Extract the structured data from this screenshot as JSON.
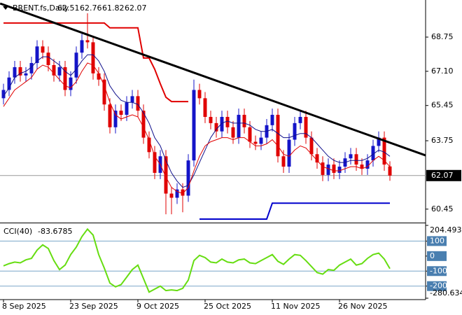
{
  "chart_data": {
    "type": "candlestick",
    "symbol": "BRENT.fs,Daily",
    "up_color": "#1414c8",
    "down_color": "#e00000",
    "xlim": [
      -0.625,
      75.375
    ],
    "ylim": [
      59.8,
      70.54
    ],
    "yticks": [
      68.75,
      {
        "value": 67.1,
        "label": "67.10"
      },
      65.45,
      63.75,
      60.45
    ],
    "xticks": [
      {
        "value": 0,
        "label": "8 Sep 2025"
      },
      {
        "value": 12,
        "label": "23 Sep 2025"
      },
      {
        "value": 24,
        "label": "9 Oct 2025"
      },
      {
        "value": 36,
        "label": "25 Oct 2025"
      },
      {
        "value": 48,
        "label": "11 Nov 2025"
      },
      {
        "value": 60,
        "label": "26 Nov 2025"
      }
    ],
    "candles": {
      "open": [
        65.8,
        66.2,
        66.8,
        67.3,
        66.9,
        67.0,
        67.5,
        68.3,
        68.0,
        67.4,
        66.9,
        67.3,
        66.2,
        66.8,
        68.0,
        68.6,
        68.5,
        67.0,
        66.7,
        65.5,
        64.4,
        65.2,
        65.0,
        65.6,
        65.9,
        65.2,
        63.9,
        63.2,
        62.2,
        63.0,
        61.2,
        61.0,
        61.4,
        61.1,
        62.8,
        66.2,
        65.8,
        64.9,
        64.6,
        64.2,
        64.9,
        64.4,
        63.9,
        65.0,
        64.4,
        63.7,
        63.6,
        63.9,
        64.5,
        65.0,
        63.0,
        62.5,
        63.8,
        64.6,
        64.9,
        63.9,
        63.1,
        62.7,
        62.1,
        62.6,
        62.2,
        62.5,
        62.9,
        63.1,
        62.6,
        62.4,
        62.8,
        63.5,
        63.9,
        62.51
      ],
      "high": [
        66.5,
        67.1,
        67.6,
        67.6,
        67.3,
        67.8,
        68.6,
        68.6,
        68.3,
        67.7,
        67.6,
        67.6,
        67.1,
        68.3,
        68.9,
        69.9,
        68.8,
        67.3,
        67.0,
        65.8,
        65.5,
        65.5,
        65.9,
        66.2,
        66.2,
        65.5,
        64.2,
        63.5,
        63.3,
        63.3,
        61.5,
        61.7,
        61.7,
        63.1,
        66.7,
        66.5,
        66.1,
        65.2,
        64.9,
        65.2,
        65.2,
        64.7,
        65.3,
        65.3,
        64.7,
        64.0,
        64.2,
        64.8,
        65.3,
        65.3,
        63.3,
        64.1,
        64.9,
        65.2,
        65.2,
        64.2,
        63.4,
        63.0,
        62.9,
        62.9,
        62.8,
        63.2,
        63.4,
        63.4,
        62.9,
        63.1,
        63.8,
        64.2,
        64.2,
        62.76
      ],
      "low": [
        65.5,
        65.9,
        66.5,
        66.6,
        66.6,
        66.7,
        67.2,
        67.7,
        67.1,
        66.6,
        66.6,
        65.9,
        65.9,
        66.5,
        67.7,
        68.2,
        66.7,
        66.4,
        65.2,
        64.1,
        64.1,
        64.7,
        64.7,
        65.3,
        64.9,
        63.6,
        62.9,
        61.9,
        61.9,
        60.2,
        60.2,
        60.7,
        60.3,
        60.8,
        62.5,
        65.5,
        64.6,
        64.3,
        63.9,
        63.9,
        64.1,
        63.6,
        63.6,
        64.1,
        63.4,
        63.3,
        63.3,
        63.6,
        64.2,
        62.7,
        62.2,
        62.2,
        63.5,
        64.3,
        63.6,
        62.8,
        62.4,
        61.8,
        61.8,
        61.9,
        61.9,
        62.2,
        62.6,
        62.3,
        62.1,
        62.1,
        62.5,
        63.2,
        62.3,
        61.82
      ],
      "close": [
        66.2,
        66.8,
        67.3,
        66.9,
        67.0,
        67.5,
        68.3,
        68.0,
        67.4,
        66.9,
        67.3,
        66.2,
        66.8,
        68.0,
        68.6,
        68.5,
        67.0,
        66.7,
        65.5,
        64.4,
        65.2,
        65.0,
        65.6,
        65.9,
        65.2,
        63.9,
        63.2,
        62.2,
        63.0,
        61.2,
        61.0,
        61.4,
        61.1,
        62.8,
        66.2,
        65.8,
        64.9,
        64.6,
        64.2,
        64.9,
        64.4,
        63.9,
        65.0,
        64.4,
        63.7,
        63.6,
        63.9,
        64.5,
        65.0,
        63.0,
        62.5,
        63.8,
        64.6,
        64.9,
        63.9,
        63.1,
        62.7,
        62.1,
        62.6,
        62.2,
        62.5,
        62.9,
        63.1,
        62.6,
        62.4,
        62.8,
        63.5,
        63.9,
        62.6,
        62.07
      ]
    },
    "overlays": [
      {
        "color": "#10108c",
        "width": 1,
        "values": [
          65.9,
          66.3,
          66.8,
          67.0,
          67.1,
          67.3,
          67.6,
          67.8,
          67.8,
          67.6,
          67.4,
          67.1,
          66.9,
          67.2,
          67.6,
          67.9,
          67.9,
          67.6,
          67.1,
          66.4,
          66.0,
          65.7,
          65.6,
          65.6,
          65.5,
          65.1,
          64.6,
          63.9,
          63.5,
          62.8,
          62.2,
          61.8,
          61.5,
          61.6,
          62.1,
          62.7,
          63.3,
          63.9,
          64.3,
          64.6,
          64.7,
          64.6,
          64.6,
          64.6,
          64.5,
          64.3,
          64.2,
          64.2,
          64.3,
          64.1,
          63.9,
          63.9,
          64.0,
          64.1,
          64.1,
          63.9,
          63.6,
          63.3,
          63.0,
          62.8,
          62.7,
          62.7,
          62.8,
          62.8,
          62.8,
          62.9,
          63.1,
          63.3,
          63.2,
          63.0
        ]
      },
      {
        "color": "#e00000",
        "width": 1,
        "values": [
          65.4,
          65.8,
          66.2,
          66.4,
          66.6,
          66.8,
          67.2,
          67.4,
          67.3,
          67.0,
          66.7,
          66.4,
          66.3,
          66.6,
          67.1,
          67.5,
          67.4,
          67.0,
          66.4,
          65.6,
          65.0,
          64.8,
          64.9,
          65.0,
          64.9,
          64.4,
          63.8,
          63.0,
          62.6,
          62.0,
          61.5,
          61.3,
          61.2,
          61.5,
          62.3,
          63.0,
          63.5,
          63.7,
          63.8,
          63.9,
          63.9,
          63.8,
          63.9,
          63.9,
          63.7,
          63.5,
          63.5,
          63.6,
          63.8,
          63.5,
          63.1,
          63.0,
          63.3,
          63.5,
          63.4,
          63.1,
          62.8,
          62.5,
          62.4,
          62.3,
          62.3,
          62.4,
          62.5,
          62.5,
          62.4,
          62.5,
          62.8,
          63.0,
          62.8,
          62.5
        ]
      },
      {
        "color": "#e00000",
        "width": 2,
        "values": [
          69.43,
          69.43,
          69.43,
          69.43,
          69.43,
          69.43,
          69.43,
          69.43,
          69.43,
          69.43,
          69.43,
          69.43,
          69.43,
          69.43,
          69.43,
          69.43,
          69.43,
          69.43,
          69.43,
          69.2,
          69.2,
          69.2,
          69.2,
          69.2,
          69.2,
          67.74,
          67.74,
          67.2,
          66.5,
          65.85,
          65.64,
          65.64,
          65.64,
          65.64,
          null,
          null,
          null,
          null,
          null,
          null,
          null,
          null,
          null,
          null,
          null,
          null,
          null,
          null,
          null,
          null,
          null,
          null,
          null,
          null,
          null,
          null,
          null,
          null,
          null,
          null,
          null,
          null,
          null,
          null,
          null,
          null,
          null,
          null,
          null,
          null
        ]
      },
      {
        "color": "#0000cc",
        "width": 2,
        "values": [
          null,
          null,
          null,
          null,
          null,
          null,
          null,
          null,
          null,
          null,
          null,
          null,
          null,
          null,
          null,
          null,
          null,
          null,
          null,
          null,
          null,
          null,
          null,
          null,
          null,
          null,
          null,
          null,
          null,
          null,
          null,
          null,
          null,
          null,
          null,
          59.97,
          59.97,
          59.97,
          59.97,
          59.97,
          59.97,
          59.97,
          59.97,
          59.97,
          59.97,
          59.97,
          59.97,
          59.97,
          60.74,
          60.74,
          60.74,
          60.74,
          60.74,
          60.74,
          60.74,
          60.74,
          60.74,
          60.74,
          60.74,
          60.74,
          60.74,
          60.74,
          60.74,
          60.74,
          60.74,
          60.74,
          60.74,
          60.74,
          60.74,
          60.74
        ]
      }
    ],
    "trendline": {
      "color": "#000000",
      "x": [
        -0.6,
        75.4
      ],
      "y": [
        70.37,
        63.04
      ]
    },
    "indicator": {
      "title": "CCI(40)",
      "color": "#66dd11",
      "ylim": [
        -280.634,
        204.493
      ],
      "yticks": [
        204.493,
        100,
        0,
        -100,
        -200,
        -280.634
      ],
      "values": [
        -65,
        -50,
        -40,
        -45,
        -25,
        -15,
        40,
        75,
        50,
        -30,
        -90,
        -60,
        10,
        60,
        130,
        180,
        140,
        10,
        -80,
        -180,
        -205,
        -190,
        -140,
        -90,
        -60,
        -150,
        -240,
        -220,
        -200,
        -230,
        -225,
        -230,
        -215,
        -160,
        -30,
        5,
        -10,
        -40,
        -45,
        -20,
        -40,
        -45,
        -25,
        -20,
        -45,
        -50,
        -30,
        -10,
        10,
        -35,
        -55,
        -20,
        10,
        5,
        -30,
        -70,
        -110,
        -120,
        -90,
        -95,
        -60,
        -40,
        -20,
        -60,
        -50,
        -15,
        10,
        20,
        -20,
        -83.6785
      ]
    }
  }
}
